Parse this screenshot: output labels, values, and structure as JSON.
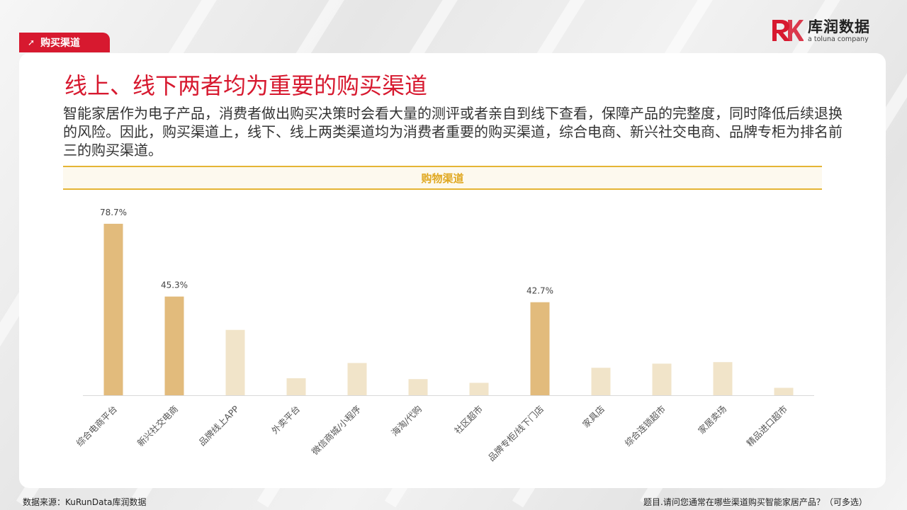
{
  "header": {
    "section_tag": "购买渠道",
    "logo_cn": "库润数据",
    "logo_en": "a toluna company"
  },
  "page": {
    "title": "线上、线下两者均为重要的购买渠道",
    "description": "智能家居作为电子产品，消费者做出购买决策时会看大量的测评或者亲自到线下查看，保障产品的完整度，同时降低后续退换的风险。因此，购买渠道上，线下、线上两类渠道均为消费者重要的购买渠道，综合电商、新兴社交电商、品牌专柜为排名前三的购买渠道。"
  },
  "chart_data": {
    "type": "bar",
    "title": "购物渠道",
    "categories": [
      "综合电商平台",
      "新兴社交电商",
      "品牌线上APP",
      "外卖平台",
      "微信商城/小程序",
      "海淘/代购",
      "社区超市",
      "品牌专柜/线下门店",
      "家具店",
      "综合连锁超市",
      "家居卖场",
      "精品进口超市"
    ],
    "values": [
      78.7,
      45.3,
      30.0,
      7.8,
      14.8,
      7.4,
      5.7,
      42.7,
      12.6,
      14.5,
      15.2,
      3.4
    ],
    "labels": [
      "78.7%",
      "45.3%",
      "",
      "",
      "",
      "",
      "",
      "42.7%",
      "",
      "",
      "",
      ""
    ],
    "highlight": [
      true,
      true,
      false,
      false,
      false,
      false,
      false,
      true,
      false,
      false,
      false,
      false
    ],
    "ylim": [
      0,
      100
    ],
    "grid": false,
    "colors": {
      "highlight": "#e2bb7c",
      "normal": "#f1e4c9"
    }
  },
  "footer": {
    "source": "数据来源：KuRunData库润数据",
    "question": "题目.请问您通常在哪些渠道购买智能家居产品？（可多选）"
  },
  "colors": {
    "accent": "#d7192f",
    "gold": "#e5b535"
  }
}
